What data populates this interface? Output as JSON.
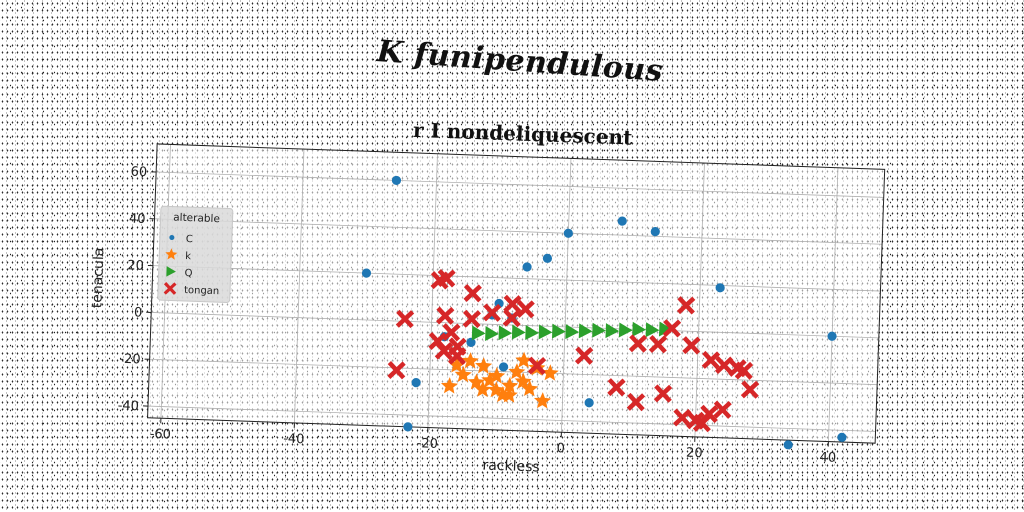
{
  "page_title": "K funipendulous",
  "chart_data": {
    "type": "scatter",
    "title": "r I nondeliquescent",
    "xlabel": "rackless",
    "ylabel": "tenacula",
    "xlim": [
      -62,
      47
    ],
    "ylim": [
      -45,
      72
    ],
    "xticks": [
      -60,
      -40,
      -20,
      0,
      20,
      40
    ],
    "yticks": [
      -40,
      -20,
      0,
      20,
      40,
      60
    ],
    "grid": true,
    "legend": {
      "title": "alterable",
      "placement": "center-left"
    },
    "series": [
      {
        "name": "C",
        "marker": "circle",
        "color": "#1f77b4",
        "points": [
          [
            -26,
            60
          ],
          [
            -30,
            20
          ],
          [
            8,
            46
          ],
          [
            13,
            42
          ],
          [
            0,
            40
          ],
          [
            -3,
            29
          ],
          [
            -6,
            25
          ],
          [
            23,
            19
          ],
          [
            40,
            0
          ],
          [
            -10,
            9
          ],
          [
            -11,
            4
          ],
          [
            -9,
            -18
          ],
          [
            -22,
            -26
          ],
          [
            4,
            -32
          ],
          [
            -23,
            -45
          ],
          [
            34,
            -47
          ],
          [
            42,
            -43
          ],
          [
            -18,
            -6
          ],
          [
            -14,
            -8
          ],
          [
            -8,
            3
          ]
        ]
      },
      {
        "name": "k",
        "marker": "star",
        "color": "#ff7f0e",
        "points": [
          [
            -17,
            -27
          ],
          [
            -15,
            -22
          ],
          [
            -13,
            -25
          ],
          [
            -12,
            -18
          ],
          [
            -11,
            -24
          ],
          [
            -10,
            -28
          ],
          [
            -9,
            -30
          ],
          [
            -8,
            -26
          ],
          [
            -7,
            -20
          ],
          [
            -6,
            -24
          ],
          [
            -5,
            -27
          ],
          [
            -4,
            -18
          ],
          [
            -3,
            -32
          ],
          [
            -2,
            -20
          ],
          [
            -14,
            -16
          ],
          [
            -16,
            -18
          ],
          [
            -12,
            -28
          ],
          [
            -10,
            -22
          ],
          [
            -8,
            -30
          ],
          [
            -6,
            -15
          ]
        ]
      },
      {
        "name": "Q",
        "marker": "triangle-right",
        "color": "#2ca02c",
        "points": [
          [
            -13,
            -4
          ],
          [
            -11,
            -4
          ],
          [
            -9,
            -3.5
          ],
          [
            -7,
            -3
          ],
          [
            -5,
            -3
          ],
          [
            -3,
            -2.5
          ],
          [
            -1,
            -2
          ],
          [
            1,
            -2
          ],
          [
            3,
            -1.5
          ],
          [
            5,
            -1
          ],
          [
            7,
            -1
          ],
          [
            9,
            -0.5
          ],
          [
            11,
            0
          ],
          [
            13,
            0
          ],
          [
            15,
            0.5
          ]
        ]
      },
      {
        "name": "tongan",
        "marker": "x-thick",
        "color": "#d62728",
        "points": [
          [
            -18,
            19
          ],
          [
            -19,
            18
          ],
          [
            -14,
            13
          ],
          [
            -8,
            9
          ],
          [
            -6,
            7
          ],
          [
            -24,
            1
          ],
          [
            -18,
            3
          ],
          [
            -14,
            2
          ],
          [
            -11,
            5
          ],
          [
            -8,
            3
          ],
          [
            -17,
            -4
          ],
          [
            -19,
            -8
          ],
          [
            -25,
            -21
          ],
          [
            -18,
            -12
          ],
          [
            -16,
            -14
          ],
          [
            -16,
            -10
          ],
          [
            -4,
            -17
          ],
          [
            3,
            -12
          ],
          [
            11,
            -6
          ],
          [
            14,
            -6
          ],
          [
            16,
            1
          ],
          [
            18,
            11
          ],
          [
            19,
            -6
          ],
          [
            22,
            -12
          ],
          [
            24,
            -14
          ],
          [
            26,
            -15
          ],
          [
            27,
            -16
          ],
          [
            28,
            -24
          ],
          [
            8,
            -25
          ],
          [
            11,
            -31
          ],
          [
            15,
            -27
          ],
          [
            18,
            -37
          ],
          [
            20,
            -38
          ],
          [
            21,
            -39
          ],
          [
            22,
            -35
          ],
          [
            24,
            -33
          ]
        ]
      }
    ]
  }
}
